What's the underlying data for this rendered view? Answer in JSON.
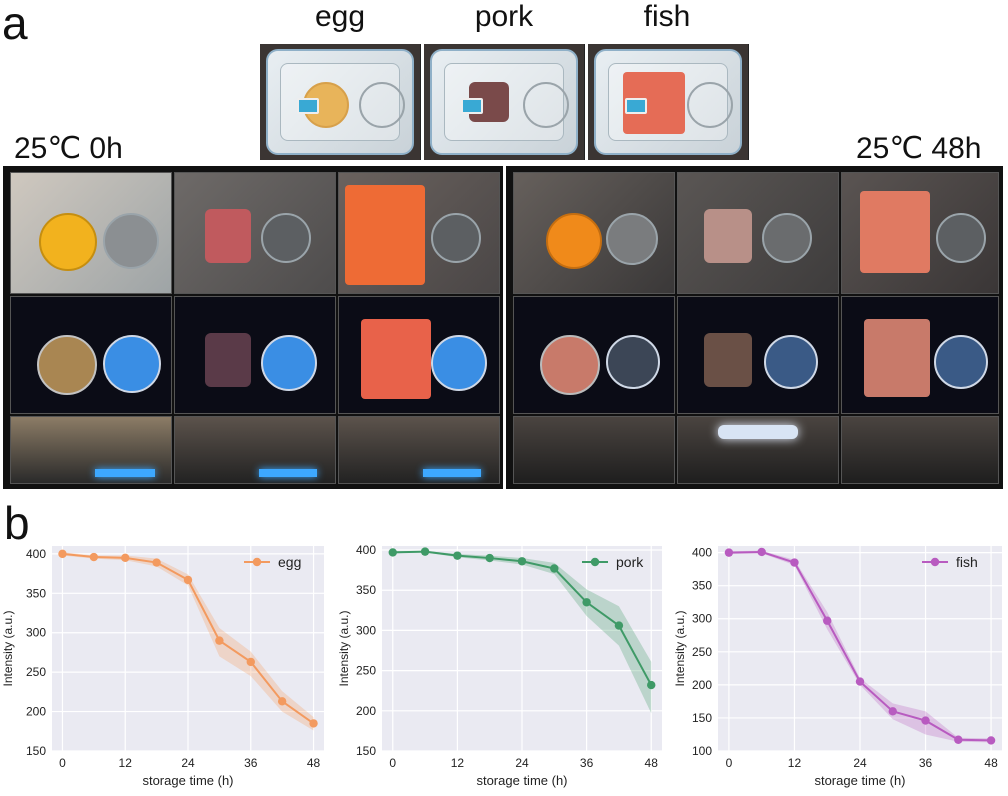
{
  "panels": {
    "a": "a",
    "b": "b"
  },
  "foods": {
    "egg": "egg",
    "pork": "pork",
    "fish": "fish"
  },
  "conditions": {
    "left": "25℃ 0h",
    "right": "25℃ 48h"
  },
  "colors": {
    "egg": "#f39a5f",
    "pork": "#3f9a67",
    "fish": "#b85bc0",
    "plot_bg": "#eaeaf2"
  },
  "chart_data": [
    {
      "type": "line",
      "legend": "egg",
      "legend_position": "top-right",
      "x": [
        0,
        6,
        12,
        18,
        24,
        30,
        36,
        42,
        48
      ],
      "values": [
        400,
        396,
        395,
        389,
        367,
        290,
        263,
        213,
        185
      ],
      "lower": [
        398,
        394,
        392,
        384,
        360,
        270,
        245,
        200,
        176
      ],
      "upper": [
        402,
        398,
        398,
        394,
        374,
        306,
        276,
        226,
        193
      ],
      "xlabel": "storage time (h)",
      "ylabel": "Intensity (a.u.)",
      "xticks": [
        0,
        12,
        24,
        36,
        48
      ],
      "yticks": [
        150,
        200,
        250,
        300,
        350,
        400
      ],
      "xlim": [
        -2,
        50
      ],
      "ylim": [
        150,
        410
      ],
      "grid": true,
      "color": "#f39a5f"
    },
    {
      "type": "line",
      "legend": "pork",
      "legend_position": "top-right",
      "x": [
        0,
        6,
        12,
        18,
        24,
        30,
        36,
        42,
        48
      ],
      "values": [
        397,
        398,
        393,
        390,
        386,
        377,
        335,
        306,
        232
      ],
      "lower": [
        396,
        397,
        391,
        387,
        382,
        370,
        318,
        281,
        197
      ],
      "upper": [
        399,
        399,
        395,
        393,
        390,
        384,
        351,
        330,
        261
      ],
      "xlabel": "storage time (h)",
      "ylabel": "Intensity (a.u.)",
      "xticks": [
        0,
        12,
        24,
        36,
        48
      ],
      "yticks": [
        150,
        200,
        250,
        300,
        350,
        400
      ],
      "xlim": [
        -2,
        50
      ],
      "ylim": [
        150,
        405
      ],
      "grid": true,
      "color": "#3f9a67"
    },
    {
      "type": "line",
      "legend": "fish",
      "legend_position": "top-right",
      "x": [
        0,
        6,
        12,
        18,
        24,
        30,
        36,
        42,
        48
      ],
      "values": [
        400,
        401,
        385,
        297,
        205,
        160,
        146,
        117,
        116
      ],
      "lower": [
        398,
        399,
        381,
        284,
        200,
        148,
        125,
        114,
        113
      ],
      "upper": [
        402,
        403,
        389,
        310,
        210,
        172,
        160,
        120,
        119
      ],
      "xlabel": "storage time (h)",
      "ylabel": "Intensity (a.u.)",
      "xticks": [
        0,
        12,
        24,
        36,
        48
      ],
      "yticks": [
        100,
        150,
        200,
        250,
        300,
        350,
        400
      ],
      "xlim": [
        -2,
        50
      ],
      "ylim": [
        100,
        410
      ],
      "grid": true,
      "color": "#b85bc0"
    }
  ]
}
